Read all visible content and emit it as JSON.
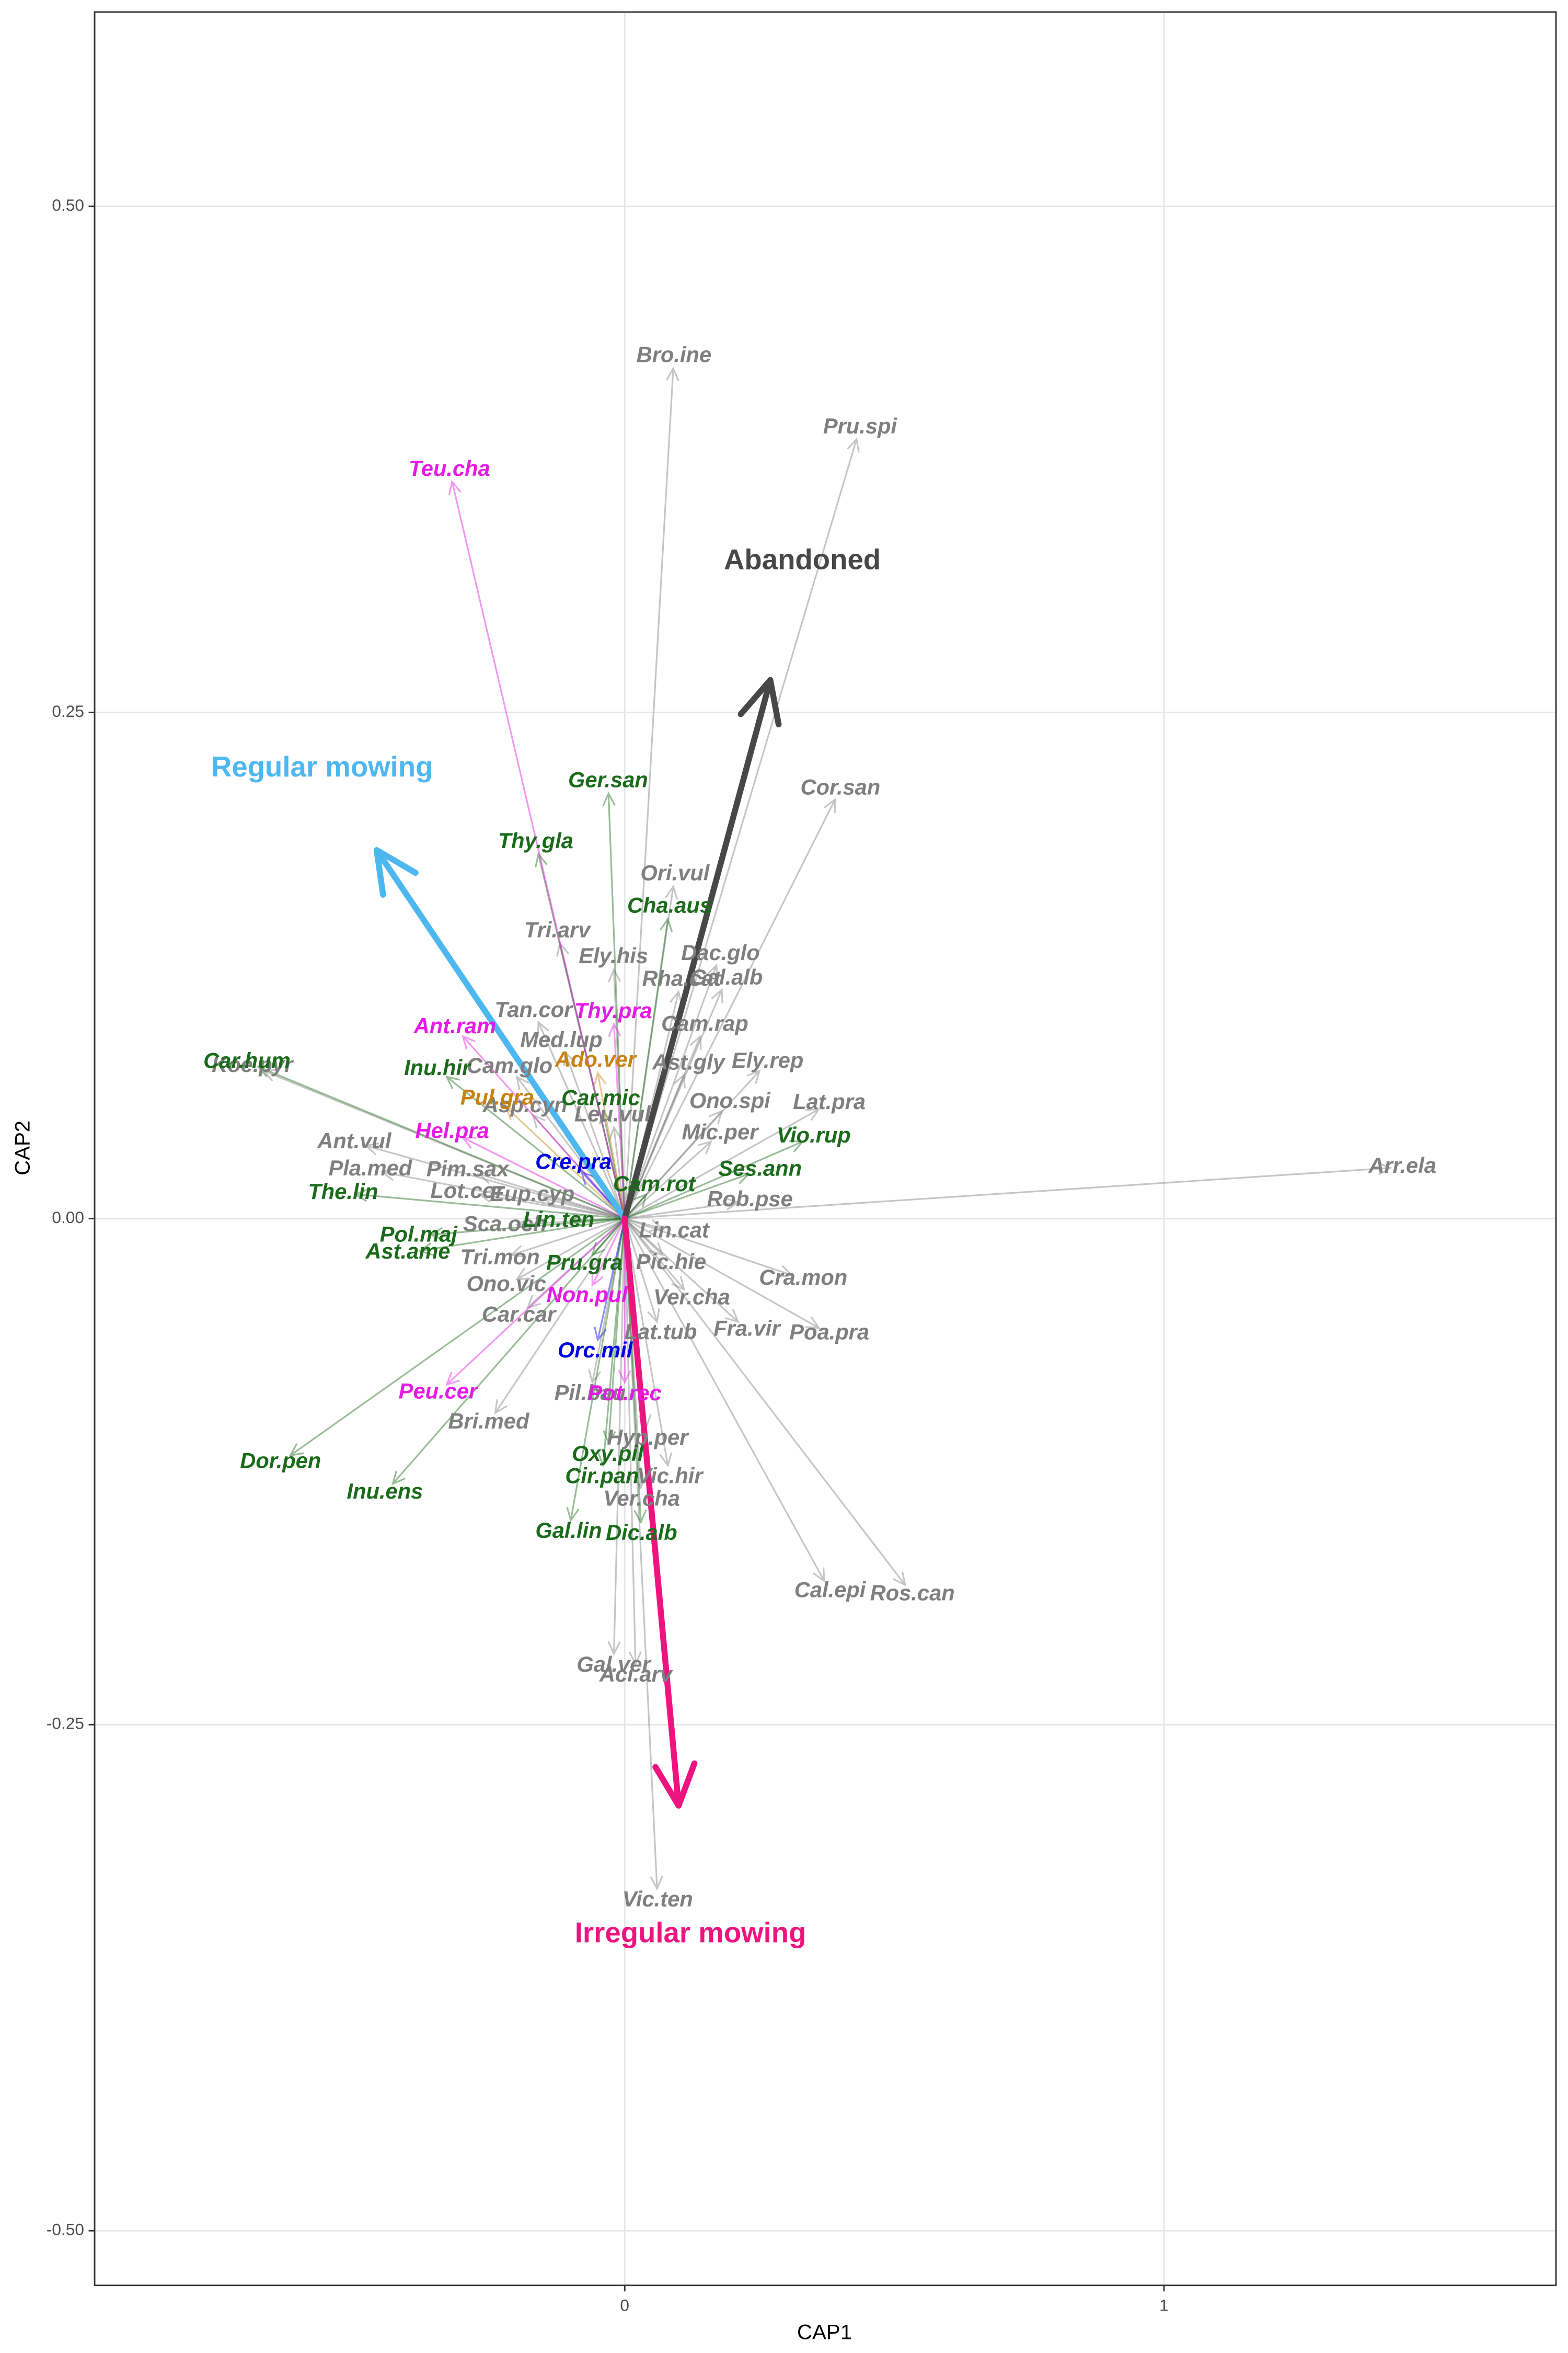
{
  "chart_data": {
    "type": "biplot",
    "xlabel": "CAP1",
    "ylabel": "CAP2",
    "xlim": [
      -0.983,
      1.727
    ],
    "ylim": [
      -0.527,
      0.596
    ],
    "xticks": [
      0,
      1
    ],
    "yticks": [
      {
        "value": -0.5,
        "label": "-0.50"
      },
      {
        "value": -0.25,
        "label": "-0.25"
      },
      {
        "value": 0,
        "label": "0.00"
      },
      {
        "value": 0.25,
        "label": "0.25"
      },
      {
        "value": 0.5,
        "label": "0.50"
      }
    ],
    "grid": true,
    "series": [
      {
        "color": "#7f7f7f",
        "labels": [
          "Bro.ine",
          "Pru.spi",
          "Cor.san",
          "Ori.vul",
          "Tri.arv",
          "Ely.his",
          "Dac.glo",
          "Rha.cat",
          "Gal.alb",
          "Tan.cor",
          "Med.lup",
          "Cam.rap",
          "Ely.rep",
          "Cam.glo",
          "Ast.gly",
          "Ono.spi",
          "Lat.pra",
          "Koe.pyr",
          "Asp.cyn",
          "Leu.vul",
          "Mic.per",
          "Ant.vul",
          "Pla.med",
          "Pim.sax",
          "Rob.pse",
          "Arr.ela",
          "Lot.cor",
          "Eup.cyp",
          "Lin.cat",
          "Sca.och",
          "Tri.mon",
          "Pic.hie",
          "Cra.mon",
          "Ono.vic",
          "Ver.cha",
          "Car.car",
          "Lat.tub",
          "Fra.vir",
          "Poa.pra",
          "Bri.med",
          "Pil.bau",
          "Hyp.per",
          "Vic.hir",
          "Ver.cha",
          "Cal.epi",
          "Ros.can",
          "Gal.ver",
          "Aci.arv",
          "Vic.ten"
        ],
        "x": [
          0.09,
          0.43,
          0.39,
          0.09,
          -0.12,
          -0.02,
          0.17,
          0.1,
          0.18,
          -0.16,
          -0.11,
          0.14,
          0.25,
          -0.2,
          0.11,
          0.18,
          0.36,
          -0.67,
          -0.17,
          -0.02,
          0.16,
          -0.48,
          -0.45,
          -0.27,
          0.21,
          1.42,
          -0.27,
          -0.15,
          0.07,
          -0.2,
          -0.21,
          0.07,
          0.31,
          -0.2,
          0.11,
          -0.18,
          0.06,
          0.21,
          0.36,
          -0.24,
          -0.06,
          0.04,
          0.08,
          0.03,
          0.37,
          0.52,
          -0.02,
          0.02,
          0.06
        ],
        "y": [
          0.42,
          0.385,
          0.207,
          0.164,
          0.136,
          0.123,
          0.125,
          0.112,
          0.113,
          0.097,
          0.082,
          0.09,
          0.073,
          0.07,
          0.071,
          0.053,
          0.054,
          0.073,
          0.051,
          0.045,
          0.038,
          0.036,
          0.023,
          0.022,
          0.008,
          0.025,
          0.012,
          0.01,
          -0.005,
          -0.003,
          -0.018,
          -0.018,
          -0.028,
          -0.03,
          -0.035,
          -0.044,
          -0.051,
          -0.051,
          -0.054,
          -0.096,
          -0.081,
          -0.103,
          -0.122,
          -0.133,
          -0.179,
          -0.181,
          -0.215,
          -0.22,
          -0.331
        ]
      },
      {
        "color": "#1a6b1a",
        "labels": [
          "Ger.san",
          "Thy.gla",
          "Cha.aus",
          "Car.hum",
          "Inu.hir",
          "Car.mic",
          "Vio.rup",
          "Ses.ann",
          "The.lin",
          "Cam.rot",
          "Pol.maj",
          "Lin.ten",
          "Ast.ame",
          "Pru.gra",
          "Dor.pen",
          "Oxy.pil",
          "Inu.ens",
          "Cir.pan",
          "Gal.lin",
          "Dic.alb"
        ],
        "x": [
          -0.03,
          -0.16,
          0.08,
          -0.68,
          -0.33,
          -0.04,
          0.33,
          0.23,
          -0.5,
          0.04,
          -0.36,
          -0.1,
          -0.38,
          -0.06,
          -0.62,
          -0.03,
          -0.43,
          -0.04,
          -0.1,
          0.03
        ],
        "y": [
          0.21,
          0.18,
          0.148,
          0.075,
          0.07,
          0.053,
          0.038,
          0.022,
          0.012,
          0.012,
          -0.008,
          -0.001,
          -0.016,
          -0.018,
          -0.117,
          -0.111,
          -0.131,
          -0.122,
          -0.149,
          -0.15
        ]
      },
      {
        "color": "#e619e6",
        "labels": [
          "Teu.cha",
          "Ant.ram",
          "Thy.pra",
          "Hel.pra",
          "Non.pul",
          "Peu.cer",
          "Pot.rec"
        ],
        "x": [
          -0.32,
          -0.3,
          -0.02,
          -0.3,
          -0.06,
          -0.33,
          0.0
        ],
        "y": [
          0.364,
          0.09,
          0.096,
          0.04,
          -0.033,
          -0.082,
          -0.081
        ]
      },
      {
        "color": "#c8820f",
        "labels": [
          "Pul.gra",
          "Ado.ver"
        ],
        "x": [
          -0.22,
          -0.05
        ],
        "y": [
          0.055,
          0.072
        ]
      },
      {
        "color": "#0000e6",
        "labels": [
          "Cre.pra",
          "Orc.mil"
        ],
        "x": [
          -0.08,
          -0.05
        ],
        "y": [
          0.023,
          -0.06
        ]
      }
    ],
    "vectors": {
      "labels": [
        "Regular mowing",
        "Abandoned",
        "Irregular mowing"
      ],
      "x": [
        -0.46,
        0.27,
        0.1
      ],
      "y": [
        0.182,
        0.266,
        -0.29
      ],
      "colors": [
        "#4db8f0",
        "#474747",
        "#ee1480"
      ]
    }
  }
}
